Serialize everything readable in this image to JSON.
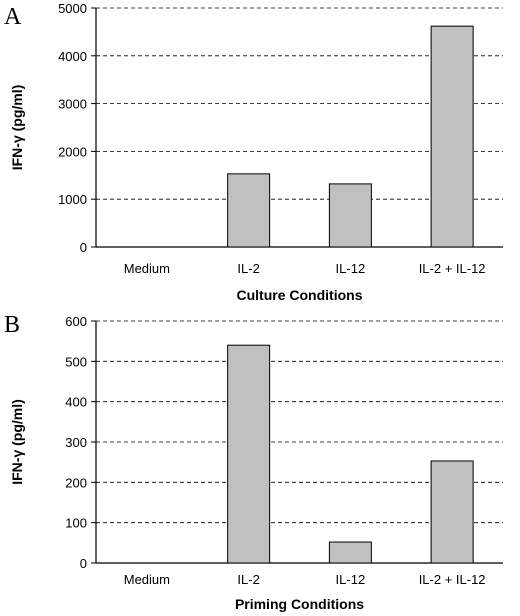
{
  "chart_data": [
    {
      "type": "bar",
      "panel_label": "A",
      "categories": [
        "Medium",
        "IL-2",
        "IL-12",
        "IL-2 + IL-12"
      ],
      "values": [
        0,
        1530,
        1320,
        4620
      ],
      "xlabel": "Culture  Conditions",
      "ylabel": "IFN-γ  (pg/ml)",
      "ylim": [
        0,
        5000
      ],
      "yticks": [
        0,
        1000,
        2000,
        3000,
        4000,
        5000
      ],
      "grid": true,
      "bar_color": "#c0c0c0"
    },
    {
      "type": "bar",
      "panel_label": "B",
      "categories": [
        "Medium",
        "IL-2",
        "IL-12",
        "IL-2 + IL-12"
      ],
      "values": [
        0,
        540,
        52,
        253
      ],
      "xlabel": "Priming  Conditions",
      "ylabel": "IFN-γ  (pg/ml)",
      "ylim": [
        0,
        600
      ],
      "yticks": [
        0,
        100,
        200,
        300,
        400,
        500,
        600
      ],
      "grid": true,
      "bar_color": "#c0c0c0"
    }
  ]
}
